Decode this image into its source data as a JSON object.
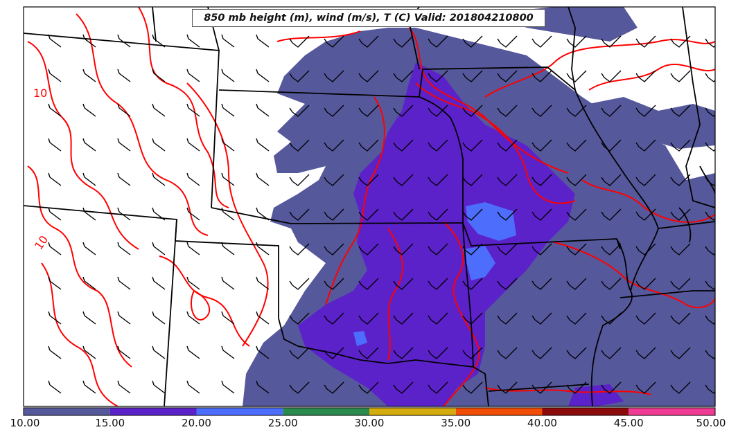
{
  "map": {
    "title": "850 mb height (m), wind (m/s), T (C) Valid: 201804210800",
    "contour_labels": [
      "10",
      "10"
    ],
    "shading_colors": [
      "#56589c",
      "#5b22c9",
      "#4d6dfc"
    ],
    "contour_color": "#ff0000",
    "boundary_color": "#000000",
    "barb_color": "#000000"
  },
  "colorbar": {
    "ticks": [
      "10.00",
      "15.00",
      "20.00",
      "25.00",
      "30.00",
      "35.00",
      "40.00",
      "45.00",
      "50.00"
    ],
    "colors": [
      "#56589c",
      "#5b22c9",
      "#4d6dfc",
      "#2a8a4e",
      "#d4ac0d",
      "#f24d05",
      "#8b0a0a",
      "#ef3b93"
    ]
  }
}
